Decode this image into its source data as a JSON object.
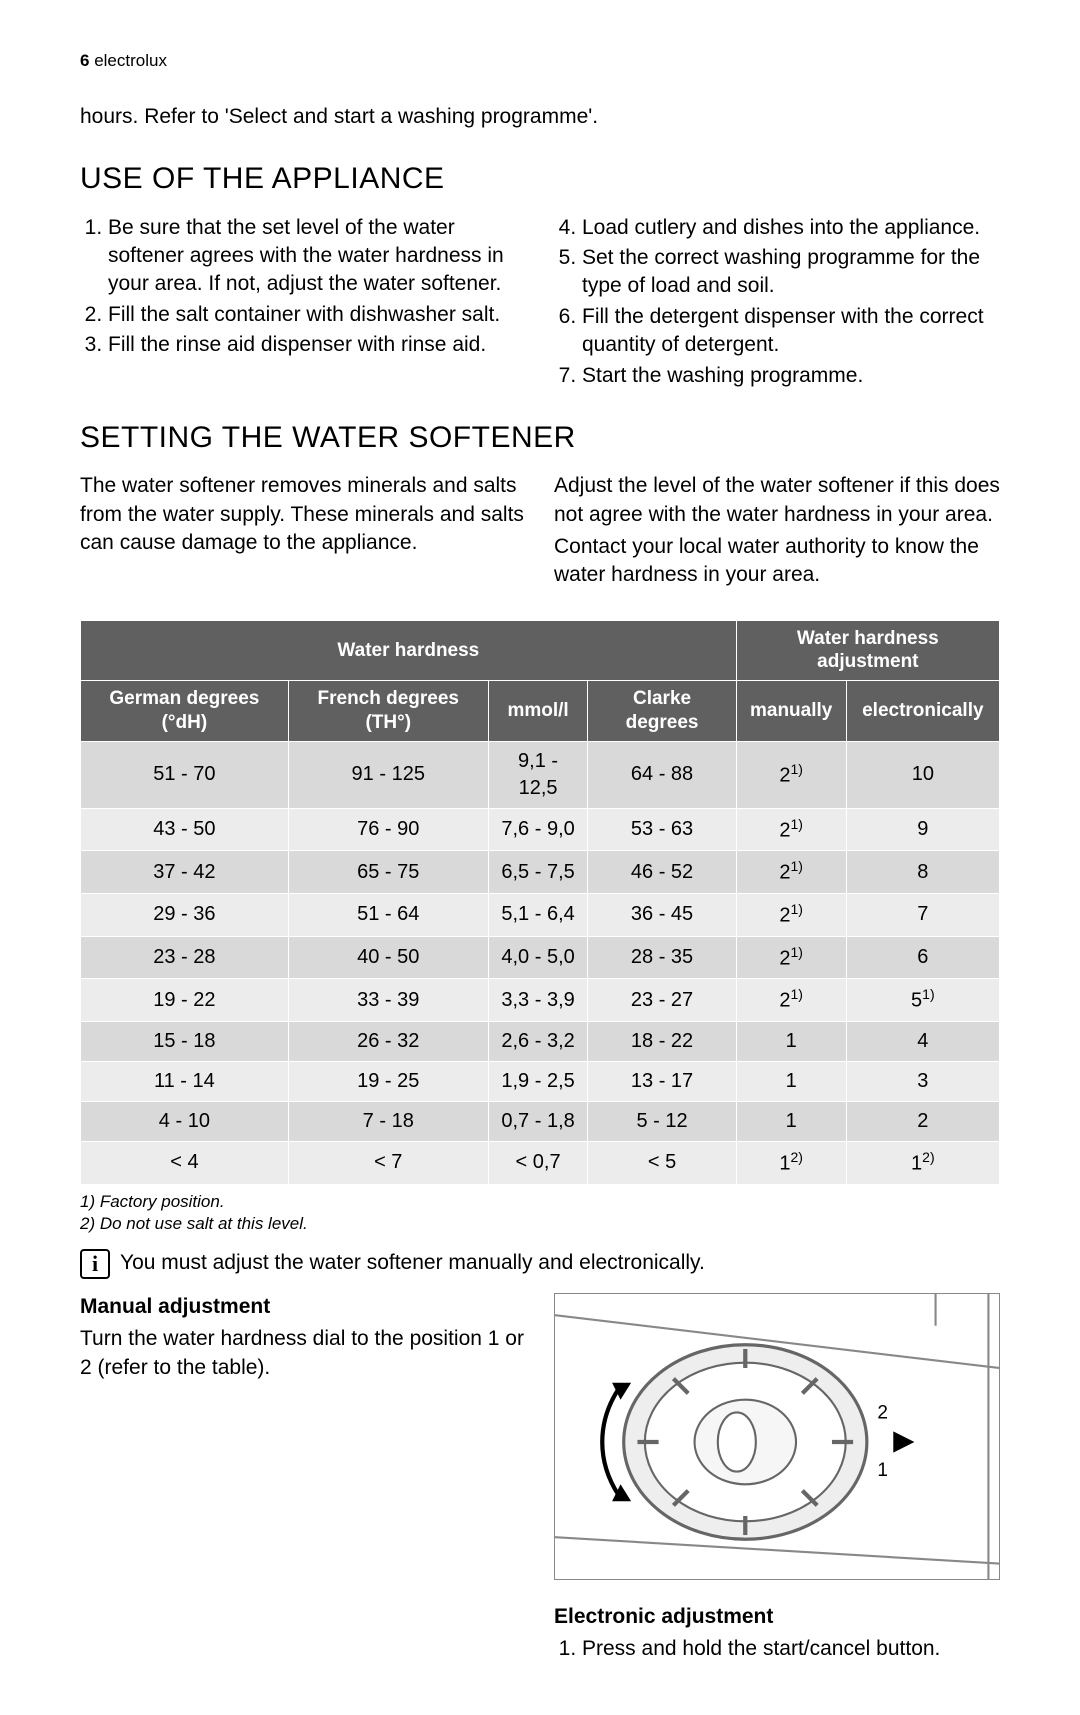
{
  "header": {
    "page_num": "6",
    "brand": "electrolux"
  },
  "intro_text": "hours. Refer to 'Select and start a washing programme'.",
  "use_section": {
    "title": "USE OF THE APPLIANCE",
    "left_items": [
      "Be sure that the set level of the water softener agrees with the water hardness in your area. If not, adjust the water softener.",
      "Fill the salt container with dishwasher salt.",
      "Fill the rinse aid dispenser with rinse aid."
    ],
    "right_items": [
      "Load cutlery and dishes into the appliance.",
      "Set the correct washing programme for the type of load and soil.",
      "Fill the detergent dispenser with the correct quantity of detergent.",
      "Start the washing programme."
    ]
  },
  "softener_section": {
    "title": "SETTING THE WATER SOFTENER",
    "left_text": "The water softener removes minerals and salts from the water supply. These minerals and salts can cause damage to the appliance.",
    "right_text_1": "Adjust the level of the water softener if this does not agree with the water hardness in your area.",
    "right_text_2": "Contact your local water authority to know the water hardness in your area."
  },
  "table": {
    "colors": {
      "header_bg": "#606060",
      "header_fg": "#ffffff",
      "row_odd_bg": "#d9d9d9",
      "row_even_bg": "#ececec",
      "border": "#ffffff"
    },
    "head_group_left": "Water hardness",
    "head_group_right": "Water hardness adjustment",
    "cols": [
      "German degrees (°dH)",
      "French degrees (TH°)",
      "mmol/l",
      "Clarke degrees",
      "manually",
      "electronically"
    ],
    "rows": [
      {
        "c": [
          "51 - 70",
          "91 - 125",
          "9,1 - 12,5",
          "64 - 88"
        ],
        "man": "2",
        "man_sup": "1)",
        "elec": "10",
        "elec_sup": ""
      },
      {
        "c": [
          "43 - 50",
          "76 - 90",
          "7,6 - 9,0",
          "53 - 63"
        ],
        "man": "2",
        "man_sup": "1)",
        "elec": "9",
        "elec_sup": ""
      },
      {
        "c": [
          "37 - 42",
          "65 - 75",
          "6,5 - 7,5",
          "46 - 52"
        ],
        "man": "2",
        "man_sup": "1)",
        "elec": "8",
        "elec_sup": ""
      },
      {
        "c": [
          "29 - 36",
          "51 - 64",
          "5,1 - 6,4",
          "36 - 45"
        ],
        "man": "2",
        "man_sup": "1)",
        "elec": "7",
        "elec_sup": ""
      },
      {
        "c": [
          "23 - 28",
          "40 - 50",
          "4,0 - 5,0",
          "28 - 35"
        ],
        "man": "2",
        "man_sup": "1)",
        "elec": "6",
        "elec_sup": ""
      },
      {
        "c": [
          "19 - 22",
          "33 - 39",
          "3,3 - 3,9",
          "23 - 27"
        ],
        "man": "2",
        "man_sup": "1)",
        "elec": "5",
        "elec_sup": "1)"
      },
      {
        "c": [
          "15 - 18",
          "26 - 32",
          "2,6 - 3,2",
          "18 - 22"
        ],
        "man": "1",
        "man_sup": "",
        "elec": "4",
        "elec_sup": ""
      },
      {
        "c": [
          "11 - 14",
          "19 - 25",
          "1,9 - 2,5",
          "13 - 17"
        ],
        "man": "1",
        "man_sup": "",
        "elec": "3",
        "elec_sup": ""
      },
      {
        "c": [
          "4 - 10",
          "7 - 18",
          "0,7 - 1,8",
          "5 - 12"
        ],
        "man": "1",
        "man_sup": "",
        "elec": "2",
        "elec_sup": ""
      },
      {
        "c": [
          "< 4",
          "< 7",
          "< 0,7",
          "< 5"
        ],
        "man": "1",
        "man_sup": "2)",
        "elec": "1",
        "elec_sup": "2)"
      }
    ]
  },
  "footnotes": {
    "f1": "1) Factory position.",
    "f2": "2) Do not use salt at this level."
  },
  "info_note": "You must adjust the water softener manually and electronically.",
  "manual": {
    "heading": "Manual adjustment",
    "text": "Turn the water hardness dial to the position 1 or 2 (refer to the table)."
  },
  "electronic": {
    "heading": "Electronic adjustment",
    "step1": "Press and hold the start/cancel button."
  }
}
